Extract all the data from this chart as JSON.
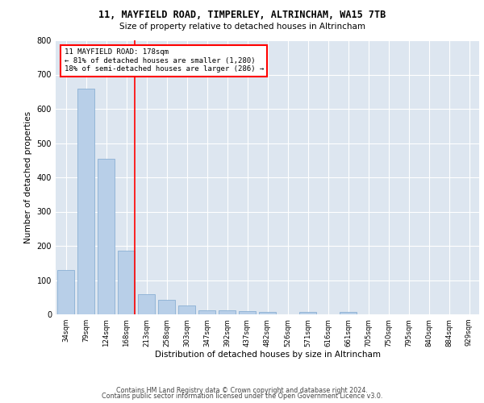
{
  "title1": "11, MAYFIELD ROAD, TIMPERLEY, ALTRINCHAM, WA15 7TB",
  "title2": "Size of property relative to detached houses in Altrincham",
  "xlabel": "Distribution of detached houses by size in Altrincham",
  "ylabel": "Number of detached properties",
  "footer1": "Contains HM Land Registry data © Crown copyright and database right 2024.",
  "footer2": "Contains public sector information licensed under the Open Government Licence v3.0.",
  "categories": [
    "34sqm",
    "79sqm",
    "124sqm",
    "168sqm",
    "213sqm",
    "258sqm",
    "303sqm",
    "347sqm",
    "392sqm",
    "437sqm",
    "482sqm",
    "526sqm",
    "571sqm",
    "616sqm",
    "661sqm",
    "705sqm",
    "750sqm",
    "795sqm",
    "840sqm",
    "884sqm",
    "929sqm"
  ],
  "values": [
    130,
    660,
    453,
    185,
    60,
    43,
    25,
    12,
    12,
    10,
    7,
    0,
    8,
    0,
    8,
    0,
    0,
    0,
    0,
    0,
    0
  ],
  "bar_color": "#b8cfe8",
  "bar_edge_color": "#8aafd4",
  "red_line_index": 3,
  "annotation_title": "11 MAYFIELD ROAD: 178sqm",
  "annotation_line1": "← 81% of detached houses are smaller (1,280)",
  "annotation_line2": "18% of semi-detached houses are larger (286) →",
  "background_color": "#dde6f0",
  "ylim": [
    0,
    800
  ],
  "yticks": [
    0,
    100,
    200,
    300,
    400,
    500,
    600,
    700,
    800
  ]
}
